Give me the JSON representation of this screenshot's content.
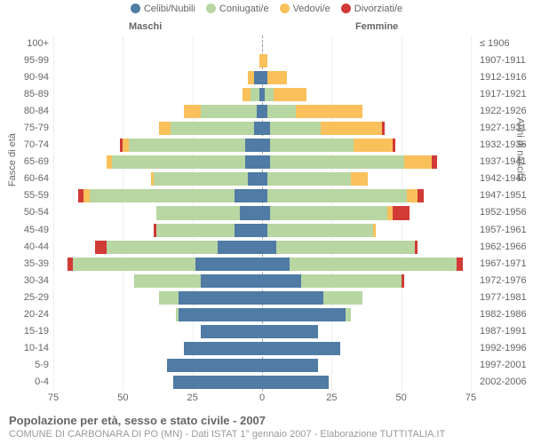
{
  "legend": [
    {
      "label": "Celibi/Nubili",
      "color": "#4f7ba5"
    },
    {
      "label": "Coniugati/e",
      "color": "#b7d6a2"
    },
    {
      "label": "Vedovi/e",
      "color": "#f9c05b"
    },
    {
      "label": "Divorziati/e",
      "color": "#d13a35"
    }
  ],
  "side_labels": {
    "left": "Maschi",
    "right": "Femmine"
  },
  "axis_titles": {
    "left": "Fasce di età",
    "right": "Anni di nascita"
  },
  "footer": {
    "title": "Popolazione per età, sesso e stato civile - 2007",
    "sub": "COMUNE DI CARBONARA DI PO (MN) - Dati ISTAT 1° gennaio 2007 - Elaborazione TUTTITALIA.IT"
  },
  "x_axis": {
    "max": 75,
    "ticks": [
      75,
      50,
      25,
      0,
      25,
      50,
      75
    ]
  },
  "colors": {
    "celibi": "#4f7ba5",
    "coniugati": "#b7d6a2",
    "vedovi": "#f9c05b",
    "divorziati": "#d13a35",
    "grid": "#eeeeee",
    "center": "#999999",
    "text": "#666666"
  },
  "rows": [
    {
      "age": "100+",
      "birth": "≤ 1906",
      "m": {
        "celibi": 0,
        "coniugati": 0,
        "vedovi": 0,
        "divorziati": 0
      },
      "f": {
        "celibi": 0,
        "coniugati": 0,
        "vedovi": 0,
        "divorziati": 0
      }
    },
    {
      "age": "95-99",
      "birth": "1907-1911",
      "m": {
        "celibi": 0,
        "coniugati": 0,
        "vedovi": 1,
        "divorziati": 0
      },
      "f": {
        "celibi": 0,
        "coniugati": 0,
        "vedovi": 2,
        "divorziati": 0
      }
    },
    {
      "age": "90-94",
      "birth": "1912-1916",
      "m": {
        "celibi": 3,
        "coniugati": 0,
        "vedovi": 2,
        "divorziati": 0
      },
      "f": {
        "celibi": 2,
        "coniugati": 0,
        "vedovi": 7,
        "divorziati": 0
      }
    },
    {
      "age": "85-89",
      "birth": "1917-1921",
      "m": {
        "celibi": 1,
        "coniugati": 3,
        "vedovi": 3,
        "divorziati": 0
      },
      "f": {
        "celibi": 1,
        "coniugati": 3,
        "vedovi": 12,
        "divorziati": 0
      }
    },
    {
      "age": "80-84",
      "birth": "1922-1926",
      "m": {
        "celibi": 2,
        "coniugati": 20,
        "vedovi": 6,
        "divorziati": 0
      },
      "f": {
        "celibi": 2,
        "coniugati": 10,
        "vedovi": 24,
        "divorziati": 0
      }
    },
    {
      "age": "75-79",
      "birth": "1927-1931",
      "m": {
        "celibi": 3,
        "coniugati": 30,
        "vedovi": 4,
        "divorziati": 0
      },
      "f": {
        "celibi": 3,
        "coniugati": 18,
        "vedovi": 22,
        "divorziati": 1
      }
    },
    {
      "age": "70-74",
      "birth": "1932-1936",
      "m": {
        "celibi": 6,
        "coniugati": 42,
        "vedovi": 2,
        "divorziati": 1
      },
      "f": {
        "celibi": 3,
        "coniugati": 30,
        "vedovi": 14,
        "divorziati": 1
      }
    },
    {
      "age": "65-69",
      "birth": "1937-1941",
      "m": {
        "celibi": 6,
        "coniugati": 48,
        "vedovi": 2,
        "divorziati": 0
      },
      "f": {
        "celibi": 3,
        "coniugati": 48,
        "vedovi": 10,
        "divorziati": 2
      }
    },
    {
      "age": "60-64",
      "birth": "1942-1946",
      "m": {
        "celibi": 5,
        "coniugati": 34,
        "vedovi": 1,
        "divorziati": 0
      },
      "f": {
        "celibi": 2,
        "coniugati": 30,
        "vedovi": 6,
        "divorziati": 0
      }
    },
    {
      "age": "55-59",
      "birth": "1947-1951",
      "m": {
        "celibi": 10,
        "coniugati": 52,
        "vedovi": 2,
        "divorziati": 2
      },
      "f": {
        "celibi": 2,
        "coniugati": 50,
        "vedovi": 4,
        "divorziati": 2
      }
    },
    {
      "age": "50-54",
      "birth": "1952-1956",
      "m": {
        "celibi": 8,
        "coniugati": 30,
        "vedovi": 0,
        "divorziati": 0
      },
      "f": {
        "celibi": 3,
        "coniugati": 42,
        "vedovi": 2,
        "divorziati": 6
      }
    },
    {
      "age": "45-49",
      "birth": "1957-1961",
      "m": {
        "celibi": 10,
        "coniugati": 28,
        "vedovi": 0,
        "divorziati": 1
      },
      "f": {
        "celibi": 2,
        "coniugati": 38,
        "vedovi": 1,
        "divorziati": 0
      }
    },
    {
      "age": "40-44",
      "birth": "1962-1966",
      "m": {
        "celibi": 16,
        "coniugati": 40,
        "vedovi": 0,
        "divorziati": 4
      },
      "f": {
        "celibi": 5,
        "coniugati": 50,
        "vedovi": 0,
        "divorziati": 1
      }
    },
    {
      "age": "35-39",
      "birth": "1967-1971",
      "m": {
        "celibi": 24,
        "coniugati": 44,
        "vedovi": 0,
        "divorziati": 2
      },
      "f": {
        "celibi": 10,
        "coniugati": 60,
        "vedovi": 0,
        "divorziati": 2
      }
    },
    {
      "age": "30-34",
      "birth": "1972-1976",
      "m": {
        "celibi": 22,
        "coniugati": 24,
        "vedovi": 0,
        "divorziati": 0
      },
      "f": {
        "celibi": 14,
        "coniugati": 36,
        "vedovi": 0,
        "divorziati": 1
      }
    },
    {
      "age": "25-29",
      "birth": "1977-1981",
      "m": {
        "celibi": 30,
        "coniugati": 7,
        "vedovi": 0,
        "divorziati": 0
      },
      "f": {
        "celibi": 22,
        "coniugati": 14,
        "vedovi": 0,
        "divorziati": 0
      }
    },
    {
      "age": "20-24",
      "birth": "1982-1986",
      "m": {
        "celibi": 30,
        "coniugati": 1,
        "vedovi": 0,
        "divorziati": 0
      },
      "f": {
        "celibi": 30,
        "coniugati": 2,
        "vedovi": 0,
        "divorziati": 0
      }
    },
    {
      "age": "15-19",
      "birth": "1987-1991",
      "m": {
        "celibi": 22,
        "coniugati": 0,
        "vedovi": 0,
        "divorziati": 0
      },
      "f": {
        "celibi": 20,
        "coniugati": 0,
        "vedovi": 0,
        "divorziati": 0
      }
    },
    {
      "age": "10-14",
      "birth": "1992-1996",
      "m": {
        "celibi": 28,
        "coniugati": 0,
        "vedovi": 0,
        "divorziati": 0
      },
      "f": {
        "celibi": 28,
        "coniugati": 0,
        "vedovi": 0,
        "divorziati": 0
      }
    },
    {
      "age": "5-9",
      "birth": "1997-2001",
      "m": {
        "celibi": 34,
        "coniugati": 0,
        "vedovi": 0,
        "divorziati": 0
      },
      "f": {
        "celibi": 20,
        "coniugati": 0,
        "vedovi": 0,
        "divorziati": 0
      }
    },
    {
      "age": "0-4",
      "birth": "2002-2006",
      "m": {
        "celibi": 32,
        "coniugati": 0,
        "vedovi": 0,
        "divorziati": 0
      },
      "f": {
        "celibi": 24,
        "coniugati": 0,
        "vedovi": 0,
        "divorziati": 0
      }
    }
  ]
}
